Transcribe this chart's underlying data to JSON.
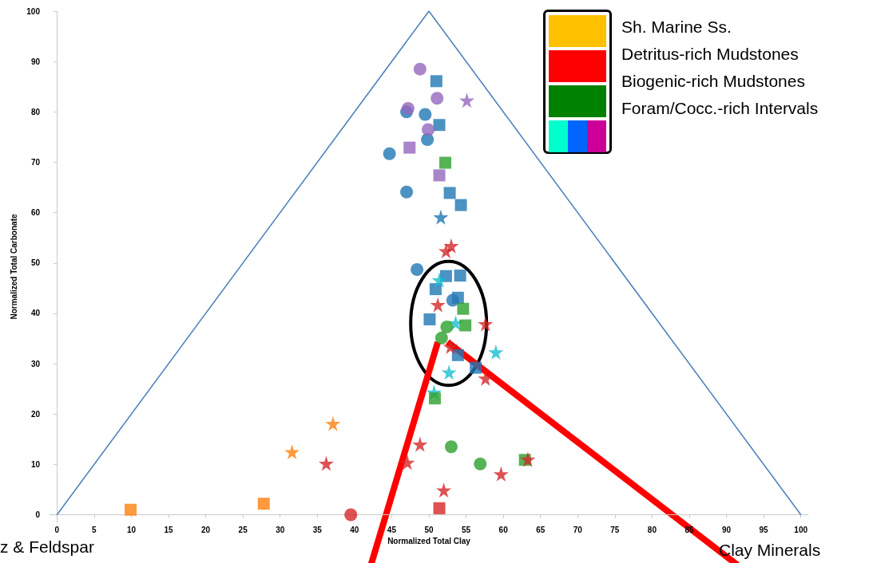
{
  "chart_data": {
    "type": "scatter",
    "xlabel": "Normalized Total Clay",
    "ylabel": "Normalized Total Carbonate",
    "xlim": [
      -1,
      101
    ],
    "ylim": [
      -1.5,
      100
    ],
    "xticks": [
      0,
      5,
      10,
      15,
      20,
      25,
      30,
      35,
      40,
      45,
      50,
      55,
      60,
      65,
      70,
      75,
      80,
      85,
      90,
      95,
      100
    ],
    "yticks": [
      0,
      10,
      20,
      30,
      40,
      50,
      60,
      70,
      80,
      90,
      100
    ],
    "grid": false,
    "annotations": [
      "Sh. Marine Ss.",
      "Detritus-rich Mudstones",
      "Biogenic-rich Mudstones",
      "Foram/Cocc.-rich Intervals",
      "z & Feldspar",
      "Clay Minerals"
    ],
    "series": [
      {
        "type": "line",
        "color": "#4a7ebb",
        "marker": "none",
        "line_style": "solid",
        "x": [
          0,
          50,
          100
        ],
        "values": [
          0,
          100,
          0
        ]
      },
      {
        "color": "#1f77b4",
        "marker": "circle",
        "x": [
          47.0,
          49.5,
          49.8,
          44.7,
          47.0,
          48.4,
          53.2
        ],
        "values": [
          80.0,
          79.5,
          74.5,
          71.7,
          64.1,
          48.7,
          42.6
        ]
      },
      {
        "color": "#1f77b4",
        "marker": "square",
        "x": [
          51.0,
          51.4,
          52.8,
          54.3,
          52.3,
          54.2,
          50.9,
          53.9,
          50.1,
          53.9,
          56.3
        ],
        "values": [
          86.1,
          77.4,
          63.9,
          61.5,
          47.4,
          47.5,
          44.8,
          43.1,
          38.8,
          31.7,
          29.2
        ]
      },
      {
        "color": "#1f77b4",
        "marker": "star",
        "x": [
          51.6
        ],
        "values": [
          59.1
        ]
      },
      {
        "color": "#9467bd",
        "marker": "circle",
        "x": [
          48.8,
          51.1,
          47.2,
          49.9
        ],
        "values": [
          88.5,
          82.7,
          80.7,
          76.5
        ]
      },
      {
        "color": "#9467bd",
        "marker": "square",
        "x": [
          47.4,
          51.4
        ],
        "values": [
          72.9,
          67.4
        ]
      },
      {
        "color": "#9467bd",
        "marker": "star",
        "x": [
          55.1
        ],
        "values": [
          82.3
        ]
      },
      {
        "color": "#17becf",
        "marker": "star",
        "x": [
          51.4,
          53.6,
          59.0,
          52.7,
          50.7
        ],
        "values": [
          46.6,
          38.1,
          32.3,
          28.3,
          24.3
        ]
      },
      {
        "color": "#2ca02c",
        "marker": "square",
        "x": [
          52.2,
          54.6,
          54.9,
          50.8,
          62.9
        ],
        "values": [
          69.9,
          40.9,
          37.6,
          23.1,
          10.9
        ]
      },
      {
        "color": "#2ca02c",
        "marker": "circle",
        "x": [
          52.4,
          51.7,
          53.0,
          56.9
        ],
        "values": [
          37.3,
          35.1,
          13.5,
          10.1
        ]
      },
      {
        "color": "#d62728",
        "marker": "star",
        "x": [
          53.0,
          52.3,
          51.2,
          57.6,
          52.9,
          57.6,
          36.2,
          48.8,
          47.1,
          63.3,
          59.7,
          52.0
        ],
        "values": [
          53.4,
          52.4,
          41.7,
          37.9,
          33.4,
          27.1,
          10.2,
          14.0,
          10.4,
          11.0,
          8.1,
          4.9
        ]
      },
      {
        "color": "#d62728",
        "marker": "circle",
        "x": [
          39.5
        ],
        "values": [
          0
        ]
      },
      {
        "color": "#d62728",
        "marker": "square",
        "x": [
          51.4
        ],
        "values": [
          1.3
        ]
      },
      {
        "color": "#ff7f0e",
        "marker": "star",
        "x": [
          37.1,
          31.6
        ],
        "values": [
          18.1,
          12.5
        ]
      },
      {
        "color": "#ff7f0e",
        "marker": "square",
        "x": [
          9.9,
          27.8
        ],
        "values": [
          1.0,
          2.2
        ]
      }
    ]
  }
}
